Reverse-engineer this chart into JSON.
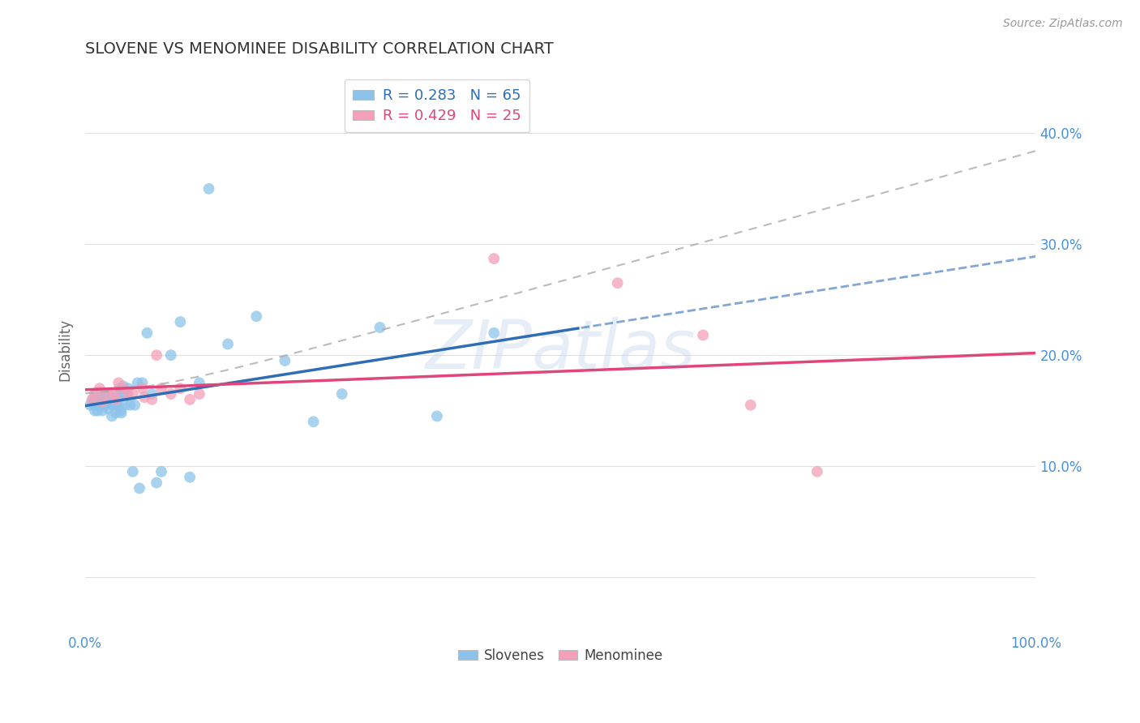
{
  "title": "SLOVENE VS MENOMINEE DISABILITY CORRELATION CHART",
  "source_text": "Source: ZipAtlas.com",
  "ylabel": "Disability",
  "legend1_label": "R = 0.283   N = 65",
  "legend2_label": "R = 0.429   N = 25",
  "slovene_color": "#8dc3ea",
  "menominee_color": "#f4a0b8",
  "slovene_line_color": "#2f6db5",
  "menominee_line_color": "#e0457b",
  "slovene_ci_color": "#a8c8e8",
  "background_color": "#ffffff",
  "grid_color": "#e0e0e0",
  "watermark_color": "#c8d8ec",
  "right_tick_color": "#4a90d9",
  "title_color": "#333333",
  "ylabel_color": "#666666",
  "xlim": [
    0.0,
    1.0
  ],
  "ylim": [
    -0.05,
    0.46
  ],
  "yticks": [
    0.0,
    0.1,
    0.2,
    0.3,
    0.4
  ],
  "right_ytick_labels": [
    "",
    "10.0%",
    "20.0%",
    "30.0%",
    "40.0%"
  ],
  "xtick_labels_show": [
    "0.0%",
    "100.0%"
  ],
  "slovene_x": [
    0.005,
    0.008,
    0.009,
    0.01,
    0.01,
    0.011,
    0.012,
    0.013,
    0.013,
    0.014,
    0.015,
    0.015,
    0.016,
    0.017,
    0.018,
    0.019,
    0.02,
    0.02,
    0.021,
    0.022,
    0.023,
    0.024,
    0.025,
    0.025,
    0.026,
    0.027,
    0.028,
    0.029,
    0.03,
    0.031,
    0.032,
    0.033,
    0.034,
    0.035,
    0.036,
    0.037,
    0.038,
    0.04,
    0.041,
    0.042,
    0.043,
    0.045,
    0.047,
    0.05,
    0.052,
    0.055,
    0.057,
    0.06,
    0.065,
    0.07,
    0.075,
    0.08,
    0.09,
    0.1,
    0.11,
    0.12,
    0.13,
    0.15,
    0.18,
    0.21,
    0.24,
    0.27,
    0.31,
    0.37,
    0.43
  ],
  "slovene_y": [
    0.155,
    0.16,
    0.155,
    0.16,
    0.15,
    0.165,
    0.155,
    0.16,
    0.15,
    0.155,
    0.16,
    0.155,
    0.165,
    0.158,
    0.15,
    0.155,
    0.158,
    0.162,
    0.155,
    0.16,
    0.165,
    0.152,
    0.158,
    0.163,
    0.156,
    0.162,
    0.145,
    0.155,
    0.16,
    0.165,
    0.148,
    0.155,
    0.162,
    0.155,
    0.17,
    0.15,
    0.148,
    0.172,
    0.165,
    0.155,
    0.165,
    0.17,
    0.155,
    0.095,
    0.155,
    0.175,
    0.08,
    0.175,
    0.22,
    0.165,
    0.085,
    0.095,
    0.2,
    0.23,
    0.09,
    0.175,
    0.35,
    0.21,
    0.235,
    0.195,
    0.14,
    0.165,
    0.225,
    0.145,
    0.22
  ],
  "menominee_x": [
    0.007,
    0.01,
    0.015,
    0.018,
    0.022,
    0.03,
    0.032,
    0.035,
    0.04,
    0.045,
    0.05,
    0.06,
    0.062,
    0.07,
    0.075,
    0.08,
    0.09,
    0.1,
    0.11,
    0.12,
    0.43,
    0.56,
    0.65,
    0.7,
    0.77
  ],
  "menominee_y": [
    0.16,
    0.165,
    0.17,
    0.158,
    0.165,
    0.165,
    0.16,
    0.175,
    0.17,
    0.165,
    0.165,
    0.17,
    0.162,
    0.16,
    0.2,
    0.17,
    0.165,
    0.17,
    0.16,
    0.165,
    0.287,
    0.265,
    0.218,
    0.155,
    0.095
  ]
}
